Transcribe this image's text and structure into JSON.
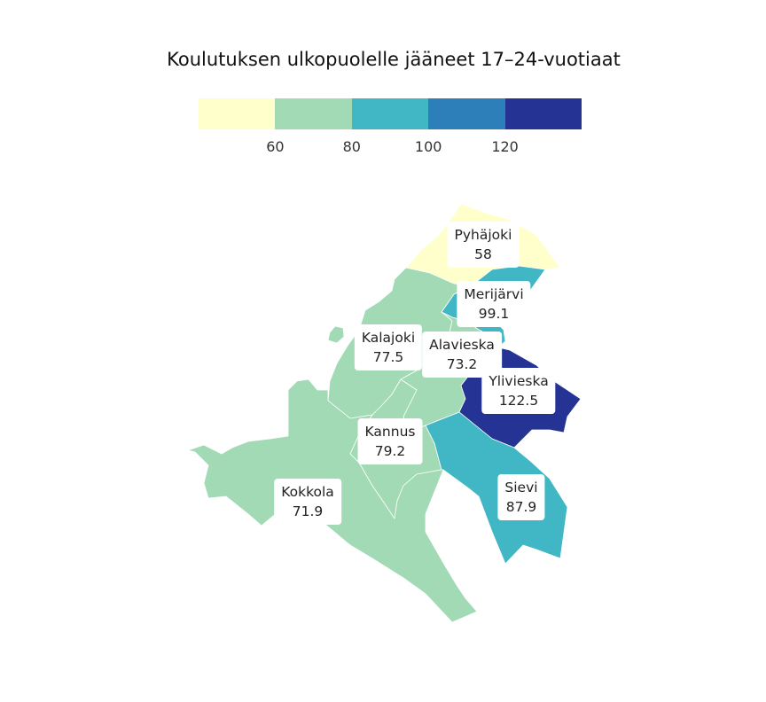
{
  "title": "Koulutuksen ulkopuolelle jääneet 17–24-vuotiaat",
  "legend": {
    "colors": [
      "#ffffcc",
      "#a1dab4",
      "#41b6c4",
      "#2c7fb8",
      "#253494"
    ],
    "ticks": [
      "60",
      "80",
      "100",
      "120"
    ]
  },
  "regions": [
    {
      "name": "Pyhäjoki",
      "value": "58",
      "color": "#ffffcc"
    },
    {
      "name": "Merijärvi",
      "value": "99.1",
      "color": "#41b6c4"
    },
    {
      "name": "Kalajoki",
      "value": "77.5",
      "color": "#a1dab4"
    },
    {
      "name": "Alavieska",
      "value": "73.2",
      "color": "#a1dab4"
    },
    {
      "name": "Ylivieska",
      "value": "122.5",
      "color": "#253494"
    },
    {
      "name": "Kannus",
      "value": "79.2",
      "color": "#a1dab4"
    },
    {
      "name": "Sievi",
      "value": "87.9",
      "color": "#41b6c4"
    },
    {
      "name": "Kokkola",
      "value": "71.9",
      "color": "#a1dab4"
    }
  ]
}
